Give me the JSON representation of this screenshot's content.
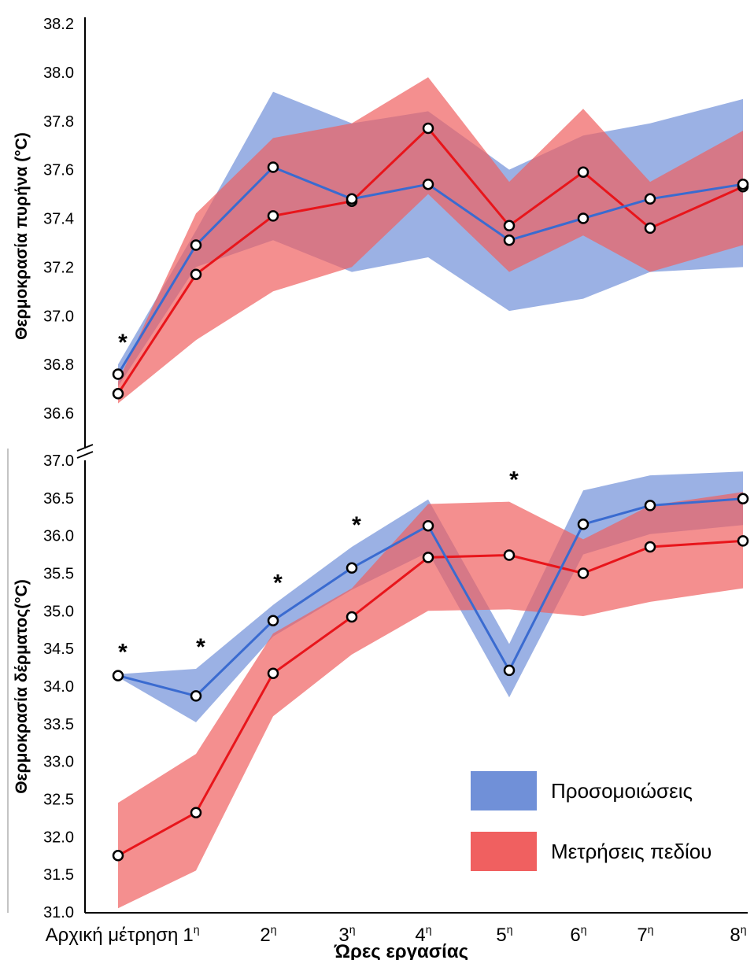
{
  "chart_data": {
    "type": "line",
    "xlabel": "Ώρες εργασίας",
    "categories": [
      {
        "label": "Αρχική μέτρηση",
        "sup": ""
      },
      {
        "label": "1",
        "sup": "η"
      },
      {
        "label": "2",
        "sup": "η"
      },
      {
        "label": "3",
        "sup": "η"
      },
      {
        "label": "4",
        "sup": "η"
      },
      {
        "label": "5",
        "sup": "η"
      },
      {
        "label": "6",
        "sup": "η"
      },
      {
        "label": "7",
        "sup": "η"
      },
      {
        "label": "8",
        "sup": "η"
      }
    ],
    "legend": {
      "position": "bottom-right",
      "items": [
        {
          "label": "Προσομοιώσεις",
          "color": "#7090d8"
        },
        {
          "label": "Μετρήσεις πεδίου",
          "color": "#f06060"
        }
      ]
    },
    "colors": {
      "sim_line": "#3a6bd0",
      "sim_band": "#7090d8",
      "field_line": "#e8151b",
      "field_band": "#f06060"
    },
    "marker_symbol": "*",
    "panels": [
      {
        "ylabel": "Θερμοκρασία πυρήνα (°C)",
        "ylim": [
          36.5,
          38.2
        ],
        "yticks": [
          "36.6",
          "36.8",
          "37.0",
          "37.2",
          "37.4",
          "37.6",
          "37.8",
          "38.0",
          "38.2"
        ],
        "series": [
          {
            "id": "sim",
            "mean": [
              36.76,
              37.29,
              37.61,
              37.48,
              37.54,
              37.31,
              37.4,
              37.48,
              37.54
            ],
            "upper": [
              36.8,
              37.35,
              37.92,
              37.79,
              37.84,
              37.6,
              37.74,
              37.79,
              37.89
            ],
            "lower": [
              36.71,
              37.2,
              37.31,
              37.18,
              37.24,
              37.02,
              37.07,
              37.18,
              37.2
            ]
          },
          {
            "id": "field",
            "mean": [
              36.68,
              37.17,
              37.41,
              37.47,
              37.77,
              37.37,
              37.59,
              37.36,
              37.53
            ],
            "upper": [
              36.73,
              37.42,
              37.73,
              37.79,
              37.98,
              37.55,
              37.85,
              37.55,
              37.76
            ],
            "lower": [
              36.64,
              36.9,
              37.1,
              37.2,
              37.5,
              37.18,
              37.33,
              37.18,
              37.29
            ]
          }
        ],
        "significant": [
          0
        ]
      },
      {
        "ylabel": "Θερμοκρασία δέρματος(°C)",
        "ylim": [
          31.0,
          37.0
        ],
        "yticks": [
          "31.0",
          "31.5",
          "32.0",
          "32.5",
          "33.0",
          "33.5",
          "34.0",
          "34.5",
          "35.0",
          "35.5",
          "36.0",
          "36.5",
          "37.0"
        ],
        "series": [
          {
            "id": "sim",
            "mean": [
              34.14,
              33.87,
              34.87,
              35.57,
              36.13,
              34.21,
              36.15,
              36.4,
              36.49
            ],
            "upper": [
              34.16,
              34.23,
              35.08,
              35.85,
              36.48,
              34.56,
              36.6,
              36.8,
              36.85
            ],
            "lower": [
              34.12,
              33.52,
              34.66,
              35.28,
              35.78,
              33.85,
              35.75,
              36.02,
              36.14
            ]
          },
          {
            "id": "field",
            "mean": [
              31.75,
              32.32,
              34.17,
              34.92,
              35.71,
              35.74,
              35.5,
              35.85,
              35.93
            ],
            "upper": [
              32.45,
              33.1,
              34.7,
              35.3,
              36.42,
              36.45,
              35.95,
              36.4,
              36.58
            ],
            "lower": [
              31.05,
              31.55,
              33.6,
              34.42,
              35.0,
              35.02,
              34.93,
              35.12,
              35.3
            ]
          }
        ],
        "significant": [
          0,
          1,
          2,
          3,
          5
        ]
      }
    ]
  }
}
